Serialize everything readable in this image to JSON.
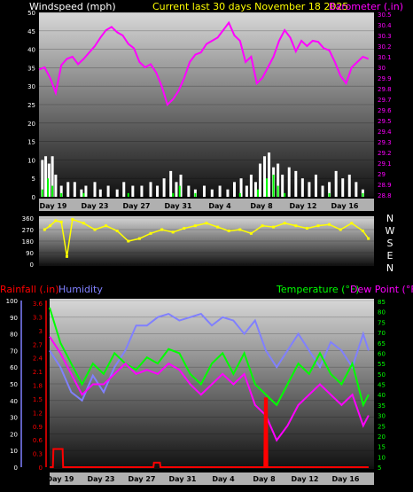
{
  "header": {
    "left_label": "Windspeed (mph)",
    "center_label": "Current last 30 days November 18 2025",
    "right_label": "Barometer (.in)"
  },
  "mid": {
    "compass": [
      "N",
      "W",
      "S",
      "E",
      "N"
    ]
  },
  "bottom_header": {
    "rain_label": "Rainfall (.in)",
    "hum_label": "Humidity",
    "temp_label": "Temperature (°F)",
    "dew_label": "Dew Point (°F)"
  },
  "colors": {
    "wind_gust": "#ffffff",
    "wind_avg": "#00ff00",
    "barometer": "#ff00ff",
    "direction": "#ffff00",
    "rain": "#ff0000",
    "humidity": "#8080ff",
    "temperature": "#00ff00",
    "dewpoint": "#ff00ff",
    "header_center": "#ffff00",
    "rain_label": "#ff0000",
    "hum_label": "#8080ff"
  },
  "chart_data": [
    {
      "type": "line",
      "id": "wind_baro",
      "x_dates": [
        "Day 19",
        "Day 23",
        "Day 27",
        "Day 31",
        "Day 4",
        "Day 8",
        "Day 12",
        "Day 16"
      ],
      "x_range_days": [
        0,
        30
      ],
      "wind_ylim": [
        0,
        50
      ],
      "wind_ticks": [
        "50",
        "45",
        "40",
        "35",
        "30",
        "25",
        "20",
        "15",
        "10",
        "5",
        "0"
      ],
      "baro_ylim": [
        28.8,
        30.5
      ],
      "baro_ticks": [
        "30.5",
        "30.4",
        "30.3",
        "30.2",
        "30.1",
        "30",
        "29.9",
        "29.8",
        "29.7",
        "29.6",
        "29.5",
        "29.4",
        "29.3",
        "29.2",
        "29.1",
        "29",
        "28.9",
        "28.8"
      ],
      "series": [
        {
          "key": "barometer",
          "x": [
            0,
            0.5,
            1,
            1.5,
            2,
            2.5,
            3,
            3.5,
            4,
            4.5,
            5,
            5.5,
            6,
            6.5,
            7,
            7.5,
            8,
            8.5,
            9,
            9.5,
            10,
            10.5,
            11,
            11.5,
            12,
            12.5,
            13,
            13.5,
            14,
            14.5,
            15,
            15.5,
            16,
            16.5,
            17,
            17.5,
            18,
            18.5,
            19,
            19.5,
            20,
            20.5,
            21,
            21.5,
            22,
            22.5,
            23,
            23.5,
            24,
            24.5,
            25,
            25.5,
            26,
            26.5,
            27,
            27.5,
            28,
            28.5,
            29,
            29.5
          ],
          "y": [
            29.98,
            30.0,
            29.9,
            29.76,
            30.02,
            30.08,
            30.1,
            30.03,
            30.08,
            30.14,
            30.2,
            30.28,
            30.35,
            30.38,
            30.33,
            30.3,
            30.22,
            30.18,
            30.05,
            30.0,
            30.03,
            29.95,
            29.82,
            29.65,
            29.7,
            29.78,
            29.9,
            30.05,
            30.12,
            30.14,
            30.22,
            30.25,
            30.28,
            30.35,
            30.42,
            30.3,
            30.25,
            30.05,
            30.1,
            29.85,
            29.9,
            30.0,
            30.1,
            30.25,
            30.35,
            30.28,
            30.15,
            30.25,
            30.2,
            30.25,
            30.24,
            30.18,
            30.16,
            30.05,
            29.92,
            29.85,
            30.0,
            30.05,
            30.1,
            30.08
          ]
        },
        {
          "key": "wind_gust",
          "x": [
            0.3,
            0.6,
            0.9,
            1.2,
            1.5,
            2.0,
            2.6,
            3.2,
            3.8,
            4.2,
            5.0,
            5.5,
            6.2,
            7.0,
            7.6,
            8.4,
            9.2,
            10.0,
            10.6,
            11.2,
            11.8,
            12.3,
            12.7,
            13.4,
            14.0,
            14.8,
            15.5,
            16.2,
            16.9,
            17.5,
            18.1,
            18.6,
            19.0,
            19.4,
            19.8,
            20.2,
            20.6,
            21.0,
            21.4,
            21.8,
            22.4,
            23.0,
            23.6,
            24.2,
            24.8,
            25.4,
            26.0,
            26.6,
            27.2,
            27.8,
            28.4,
            29.0
          ],
          "y": [
            10,
            11,
            9,
            11,
            6,
            3,
            4,
            4,
            2,
            3,
            4,
            2,
            3,
            2,
            4,
            3,
            3,
            4,
            3,
            5,
            7,
            4,
            6,
            3,
            2,
            3,
            2,
            3,
            2,
            4,
            5,
            3,
            6,
            4,
            9,
            11,
            12,
            8,
            9,
            6,
            8,
            7,
            5,
            4,
            6,
            3,
            4,
            7,
            5,
            6,
            4,
            2
          ]
        },
        {
          "key": "wind_avg",
          "x": [
            0.3,
            0.8,
            1.2,
            2,
            4,
            8,
            12,
            12.6,
            14,
            18,
            19.6,
            20.4,
            21,
            21.4,
            22,
            26,
            29
          ],
          "y": [
            2,
            5,
            3,
            1,
            1,
            1,
            1,
            3,
            1,
            1,
            2,
            5,
            6,
            3,
            1,
            1,
            1
          ]
        },
        {
          "key": "rain",
          "x": [
            0,
            0.3,
            0.35,
            1.2,
            1.25,
            1.4,
            1.45,
            9.6,
            9.65,
            10.2,
            10.25,
            10.4,
            10.45,
            29.5
          ],
          "y": [
            0,
            0,
            0.4,
            0.4,
            0,
            0,
            0,
            0,
            0.1,
            0.1,
            0,
            0,
            0,
            0
          ]
        },
        {
          "key": "rain_day8",
          "x": [
            19.9,
            19.95,
            20.05,
            20.1
          ],
          "y": [
            0,
            1.5,
            1.5,
            0
          ]
        }
      ]
    },
    {
      "type": "scatter",
      "id": "wind_dir",
      "ylim": [
        0,
        360
      ],
      "ticks": [
        "360",
        "270",
        "180",
        "90",
        "0"
      ],
      "series": [
        {
          "key": "direction",
          "x": [
            0.5,
            1,
            1.5,
            2,
            2.5,
            3,
            4,
            5,
            6,
            7,
            8,
            9,
            10,
            11,
            12,
            13,
            14,
            15,
            16,
            17,
            18,
            19,
            20,
            21,
            22,
            23,
            24,
            25,
            26,
            27,
            28,
            29,
            29.5
          ],
          "y": [
            270,
            300,
            340,
            330,
            60,
            350,
            320,
            270,
            300,
            260,
            180,
            200,
            240,
            270,
            250,
            280,
            300,
            320,
            290,
            260,
            270,
            240,
            300,
            290,
            320,
            300,
            280,
            300,
            310,
            270,
            320,
            260,
            200
          ]
        }
      ]
    },
    {
      "type": "line",
      "id": "temp_hum_rain",
      "x_dates": [
        "Day 19",
        "Day 23",
        "Day 27",
        "Day 31",
        "Day 4",
        "Day 8",
        "Day 12",
        "Day 16"
      ],
      "hum_ylim": [
        0,
        100
      ],
      "hum_ticks": [
        "100",
        "90",
        "80",
        "70",
        "60",
        "50",
        "40",
        "30",
        "20",
        "10",
        "0"
      ],
      "rain_ylim": [
        0,
        3.6
      ],
      "rain_ticks": [
        "3.6",
        "3.3",
        "3",
        "2.7",
        "2.4",
        "2.1",
        "1.8",
        "1.5",
        "1.2",
        "0.9",
        "0.6",
        "0.3",
        "0"
      ],
      "temp_ylim": [
        5,
        85
      ],
      "temp_ticks": [
        "85",
        "80",
        "75",
        "70",
        "65",
        "60",
        "55",
        "50",
        "45",
        "40",
        "35",
        "30",
        "25",
        "20",
        "15",
        "10",
        "5"
      ],
      "series": [
        {
          "key": "humidity",
          "x": [
            0,
            1,
            2,
            3,
            4,
            5,
            6,
            7,
            8,
            9,
            10,
            11,
            12,
            13,
            14,
            15,
            16,
            17,
            18,
            19,
            20,
            21,
            22,
            23,
            24,
            25,
            26,
            27,
            28,
            29,
            29.5
          ],
          "y": [
            70,
            60,
            45,
            40,
            55,
            45,
            60,
            70,
            85,
            85,
            90,
            92,
            88,
            90,
            92,
            85,
            90,
            88,
            80,
            88,
            70,
            60,
            70,
            80,
            70,
            60,
            75,
            70,
            60,
            80,
            70
          ]
        },
        {
          "key": "temperature",
          "x": [
            0,
            1,
            2,
            3,
            4,
            5,
            6,
            7,
            8,
            9,
            10,
            11,
            12,
            13,
            14,
            15,
            16,
            17,
            18,
            19,
            20,
            21,
            22,
            23,
            24,
            25,
            26,
            27,
            28,
            29,
            29.5
          ],
          "y": [
            82,
            65,
            55,
            45,
            55,
            50,
            60,
            55,
            52,
            58,
            55,
            62,
            60,
            50,
            45,
            55,
            60,
            50,
            60,
            45,
            40,
            35,
            45,
            55,
            50,
            60,
            50,
            45,
            55,
            35,
            40
          ]
        },
        {
          "key": "dewpoint",
          "x": [
            0,
            1,
            2,
            3,
            4,
            5,
            6,
            7,
            8,
            9,
            10,
            11,
            12,
            13,
            14,
            15,
            16,
            17,
            18,
            19,
            20,
            21,
            22,
            23,
            24,
            25,
            26,
            27,
            28,
            29,
            29.5
          ],
          "y": [
            68,
            60,
            50,
            40,
            45,
            45,
            50,
            55,
            50,
            52,
            50,
            55,
            52,
            45,
            40,
            45,
            50,
            45,
            50,
            35,
            30,
            18,
            25,
            35,
            40,
            45,
            40,
            35,
            40,
            25,
            30
          ]
        }
      ]
    }
  ]
}
